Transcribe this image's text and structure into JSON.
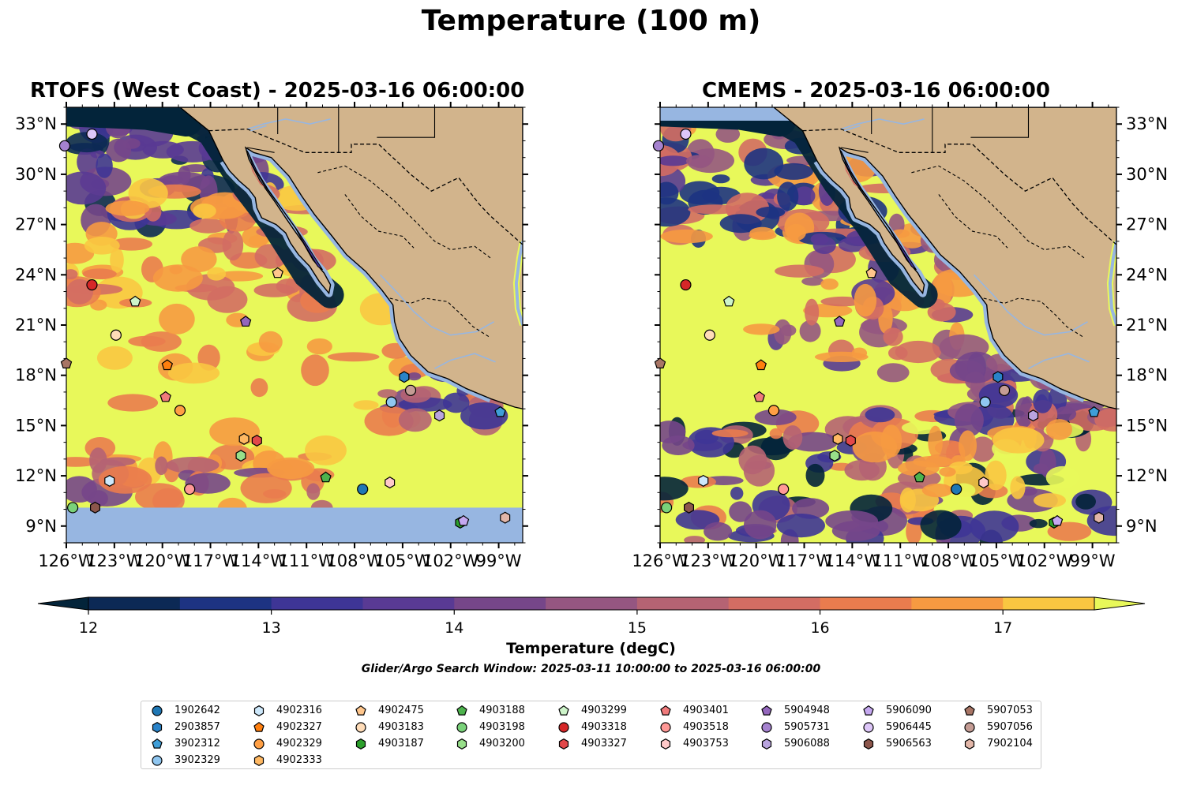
{
  "figure": {
    "suptitle": "Temperature (100 m)",
    "search_window": "Glider/Argo Search Window: 2025-03-11 10:00:00 to 2025-03-16 06:00:00",
    "colors": {
      "land": "#d2b48c",
      "ocean_missing": "#97b6e1",
      "rivers": "#97b6e1",
      "coastline": "#000000",
      "borders": "#000000"
    }
  },
  "chart_data": {
    "type": "heatmap",
    "map_extent": {
      "lon": [
        -126,
        -97.5
      ],
      "lat": [
        8,
        34
      ]
    },
    "xticks": [
      -126,
      -123,
      -120,
      -117,
      -114,
      -111,
      -108,
      -105,
      -102,
      -99
    ],
    "xtick_labels": [
      "126°W",
      "123°W",
      "120°W",
      "117°W",
      "114°W",
      "111°W",
      "108°W",
      "105°W",
      "102°W",
      "99°W"
    ],
    "yticks": [
      9,
      12,
      15,
      18,
      21,
      24,
      27,
      30,
      33
    ],
    "ytick_labels": [
      "9°N",
      "12°N",
      "15°N",
      "18°N",
      "21°N",
      "24°N",
      "27°N",
      "30°N",
      "33°N"
    ],
    "panels": [
      {
        "title": "RTOFS (West Coast) - 2025-03-16 06:00:00",
        "missing_south_of_lat": 10.1
      },
      {
        "title": "CMEMS - 2025-03-16 06:00:00",
        "missing_north_of_lat": 33.2
      }
    ],
    "colorbar": {
      "label": "Temperature (degC)",
      "levels": [
        12,
        12.5,
        13,
        13.5,
        14,
        14.5,
        15,
        15.5,
        16,
        16.5,
        17,
        17.5
      ],
      "ticks": [
        12,
        13,
        14,
        15,
        16,
        17
      ],
      "tick_labels": [
        "12",
        "13",
        "14",
        "15",
        "16",
        "17"
      ],
      "extend": "both",
      "colors": [
        "#03243a",
        "#0c2955",
        "#1d3382",
        "#3e3596",
        "#593a94",
        "#764689",
        "#955681",
        "#b56373",
        "#d36d63",
        "#ea7c4e",
        "#f69a41",
        "#f9c641",
        "#e8f85a"
      ]
    },
    "legend": {
      "placement": "lower-center",
      "columns": 9,
      "entries": [
        {
          "id": "1902642",
          "marker": "circle",
          "color": "#1f77b4",
          "lon": -107.5,
          "lat": 11.2
        },
        {
          "id": "2903857",
          "marker": "hexagon",
          "color": "#2a83c9",
          "lon": -104.9,
          "lat": 17.9
        },
        {
          "id": "3902312",
          "marker": "pentagon",
          "color": "#3f9ed8",
          "lon": -98.9,
          "lat": 15.8
        },
        {
          "id": "3902329",
          "marker": "circle",
          "color": "#8fc6f0",
          "lon": -105.7,
          "lat": 16.4
        },
        {
          "id": "4902316",
          "marker": "hexagon",
          "color": "#cde8fb",
          "lon": -123.3,
          "lat": 11.7
        },
        {
          "id": "4902327",
          "marker": "pentagon",
          "color": "#ff7f0e",
          "lon": -119.7,
          "lat": 18.6
        },
        {
          "id": "4902329",
          "marker": "circle",
          "color": "#ff9f44",
          "lon": -118.9,
          "lat": 15.9
        },
        {
          "id": "4902333",
          "marker": "hexagon",
          "color": "#ffb862",
          "lon": -114.9,
          "lat": 14.2
        },
        {
          "id": "4902475",
          "marker": "pentagon",
          "color": "#ffc68c",
          "lon": -112.8,
          "lat": 24.1
        },
        {
          "id": "4903183",
          "marker": "circle",
          "color": "#ffdcb8",
          "lon": -122.9,
          "lat": 20.4
        },
        {
          "id": "4903187",
          "marker": "hexagon",
          "color": "#2ca02c",
          "lon": -101.4,
          "lat": 9.2
        },
        {
          "id": "4903188",
          "marker": "pentagon",
          "color": "#4db34d",
          "lon": -109.8,
          "lat": 11.9
        },
        {
          "id": "4903198",
          "marker": "circle",
          "color": "#7ad27a",
          "lon": -125.6,
          "lat": 10.1
        },
        {
          "id": "4903200",
          "marker": "hexagon",
          "color": "#98df8a",
          "lon": -115.1,
          "lat": 13.2
        },
        {
          "id": "4903299",
          "marker": "pentagon",
          "color": "#cdf4c9",
          "lon": -121.7,
          "lat": 22.4
        },
        {
          "id": "4903318",
          "marker": "circle",
          "color": "#d62728",
          "lon": -124.4,
          "lat": 23.4
        },
        {
          "id": "4903327",
          "marker": "hexagon",
          "color": "#e2484a",
          "lon": -114.1,
          "lat": 14.1
        },
        {
          "id": "4903401",
          "marker": "pentagon",
          "color": "#f07a7b",
          "lon": -119.8,
          "lat": 16.7
        },
        {
          "id": "4903518",
          "marker": "circle",
          "color": "#ff9896",
          "lon": -118.3,
          "lat": 11.2
        },
        {
          "id": "4903753",
          "marker": "hexagon",
          "color": "#ffc9c9",
          "lon": -105.8,
          "lat": 11.6
        },
        {
          "id": "5904948",
          "marker": "pentagon",
          "color": "#9467bd",
          "lon": -114.8,
          "lat": 21.2
        },
        {
          "id": "5905731",
          "marker": "circle",
          "color": "#a582cf",
          "lon": -126.1,
          "lat": 31.7
        },
        {
          "id": "5906088",
          "marker": "hexagon",
          "color": "#b9a4df",
          "lon": -102.7,
          "lat": 15.6
        },
        {
          "id": "5906090",
          "marker": "pentagon",
          "color": "#c5a8f0",
          "lon": -101.2,
          "lat": 9.3
        },
        {
          "id": "5906445",
          "marker": "circle",
          "color": "#ddc6f8",
          "lon": -124.4,
          "lat": 32.4
        },
        {
          "id": "5906563",
          "marker": "hexagon",
          "color": "#8c564b",
          "lon": -124.2,
          "lat": 10.1
        },
        {
          "id": "5907053",
          "marker": "pentagon",
          "color": "#a87565",
          "lon": -126.0,
          "lat": 18.7
        },
        {
          "id": "5907056",
          "marker": "circle",
          "color": "#c49c94",
          "lon": -104.5,
          "lat": 17.1
        },
        {
          "id": "7902104",
          "marker": "hexagon",
          "color": "#e2b6a8",
          "lon": -98.6,
          "lat": 9.5
        }
      ]
    }
  }
}
